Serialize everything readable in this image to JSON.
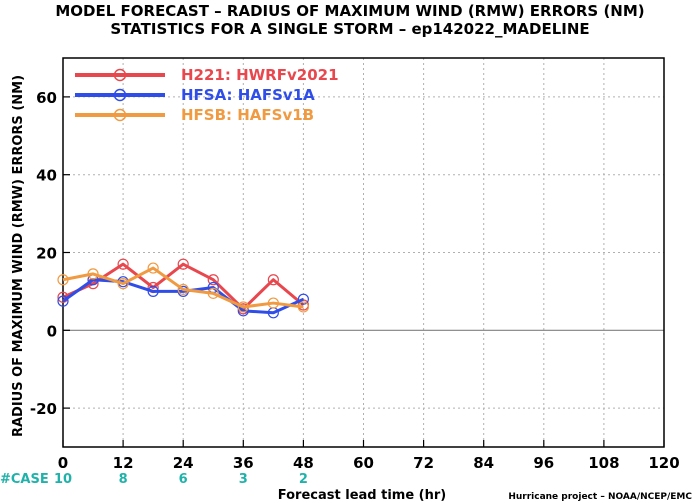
{
  "titles": {
    "line1": "MODEL FORECAST – RADIUS OF MAXIMUM WIND (RMW) ERRORS (NM)",
    "line2": "STATISTICS FOR A SINGLE STORM – ep142022_MADELINE"
  },
  "case_row": {
    "label": "#CASE",
    "counts": [
      {
        "x": 0,
        "text": "10"
      },
      {
        "x": 12,
        "text": "8"
      },
      {
        "x": 24,
        "text": "6"
      },
      {
        "x": 36,
        "text": "3"
      },
      {
        "x": 48,
        "text": "2"
      }
    ]
  },
  "credit": "Hurricane project – NOAA/NCEP/EMC",
  "colors": {
    "case": "#20b2aa",
    "zero_line": "#808080",
    "grid": "#b0b0b0"
  },
  "chart_data": {
    "type": "line",
    "title": "MODEL FORECAST – RADIUS OF MAXIMUM WIND (RMW) ERRORS (NM)",
    "subtitle": "STATISTICS FOR A SINGLE STORM – ep142022_MADELINE",
    "xlabel": "Forecast lead time (hr)",
    "ylabel": "RADIUS OF MAXIMUM WIND (RMW) ERRORS (NM)",
    "xlim": [
      0,
      120
    ],
    "ylim": [
      -30,
      70
    ],
    "xticks": [
      0,
      12,
      24,
      36,
      48,
      60,
      72,
      84,
      96,
      108,
      120
    ],
    "yticks": [
      -20,
      0,
      20,
      40,
      60
    ],
    "ytick_labels": [
      "-20",
      "0",
      "20",
      "40",
      "60"
    ],
    "grid": true,
    "legend_position": "top-left",
    "x": [
      0,
      6,
      12,
      18,
      24,
      30,
      36,
      42,
      48
    ],
    "series": [
      {
        "name": "H221: HWRFv2021",
        "color": "#e8474d",
        "values": [
          8.5,
          12,
          17,
          11,
          17,
          13,
          5.5,
          13,
          6.5
        ]
      },
      {
        "name": "HFSA: HAFSv1A",
        "color": "#2f4de8",
        "values": [
          7.5,
          13,
          12.5,
          10,
          10,
          11,
          5,
          4.5,
          8
        ]
      },
      {
        "name": "HFSB: HAFSv1B",
        "color": "#f09a42",
        "values": [
          13,
          14.5,
          12,
          16,
          10.5,
          9.5,
          6,
          7,
          6
        ]
      }
    ]
  }
}
